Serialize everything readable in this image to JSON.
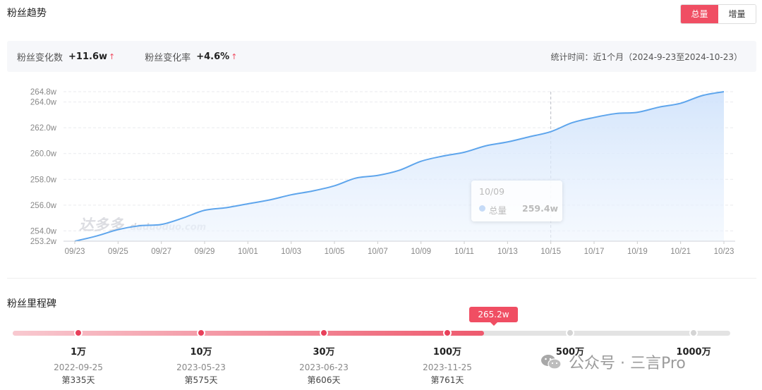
{
  "header": {
    "title": "粉丝趋势"
  },
  "toggle": {
    "total_label": "总量",
    "increment_label": "增量",
    "active": "total"
  },
  "summary": {
    "change_count_label": "粉丝变化数",
    "change_count_value": "+11.6w",
    "change_rate_label": "粉丝变化率",
    "change_rate_value": "+4.6%",
    "arrow": "↑",
    "period": "统计时间：近1个月（2024-9-23至2024-10-23）"
  },
  "chart_data": {
    "type": "area",
    "x_ticks": [
      "09/23",
      "09/25",
      "09/27",
      "09/29",
      "10/01",
      "10/03",
      "10/05",
      "10/07",
      "10/09",
      "10/11",
      "10/13",
      "10/15",
      "10/17",
      "10/19",
      "10/21",
      "10/23"
    ],
    "y_ticks": [
      "253.2w",
      "254.0w",
      "256.0w",
      "258.0w",
      "260.0w",
      "262.0w",
      "264.0w",
      "264.8w"
    ],
    "ylim": [
      253.2,
      264.8
    ],
    "series": [
      {
        "x": [
          "09/23",
          "09/24",
          "09/25",
          "09/26",
          "09/27",
          "09/28",
          "09/29",
          "09/30",
          "10/01",
          "10/02",
          "10/03",
          "10/04",
          "10/05",
          "10/06",
          "10/07",
          "10/08",
          "10/09",
          "10/10",
          "10/11",
          "10/12",
          "10/13",
          "10/14",
          "10/15",
          "10/16",
          "10/17",
          "10/18",
          "10/19",
          "10/20",
          "10/21",
          "10/22",
          "10/23"
        ],
        "values": [
          253.2,
          253.6,
          254.1,
          254.4,
          254.5,
          255.0,
          255.6,
          255.8,
          256.1,
          256.4,
          256.8,
          257.1,
          257.5,
          258.1,
          258.3,
          258.7,
          259.4,
          259.8,
          260.1,
          260.6,
          260.9,
          261.3,
          261.7,
          262.4,
          262.8,
          263.1,
          263.2,
          263.6,
          263.9,
          264.5,
          264.8
        ]
      }
    ],
    "crosshair_x": "10/15",
    "tooltip": {
      "date": "10/09",
      "series_name": "总量",
      "value": "259.4w"
    },
    "grid": true,
    "color": "#5ea5ec",
    "watermark": {
      "main": "达多多",
      "sub": "daduoduo.com"
    }
  },
  "milestones_section": {
    "title": "粉丝里程碑",
    "current_value": "265.2w",
    "current_progress": 0.657,
    "items": [
      {
        "label": "1万",
        "date": "2022-09-25",
        "days": "第335天",
        "reached": true
      },
      {
        "label": "10万",
        "date": "2023-05-23",
        "days": "第575天",
        "reached": true
      },
      {
        "label": "30万",
        "date": "2023-06-23",
        "days": "第606天",
        "reached": true
      },
      {
        "label": "100万",
        "date": "2023-11-25",
        "days": "第761天",
        "reached": true
      },
      {
        "label": "500万",
        "date": "",
        "days": "",
        "reached": false
      },
      {
        "label": "1000万",
        "date": "",
        "days": "",
        "reached": false
      }
    ]
  },
  "watermark_footer": {
    "text": "公众号 · 三言Pro"
  },
  "colors": {
    "accent": "#f04e63",
    "line": "#5ea5ec",
    "milestone_done": "#e8405a",
    "milestone_todo": "#d4d4d4"
  }
}
